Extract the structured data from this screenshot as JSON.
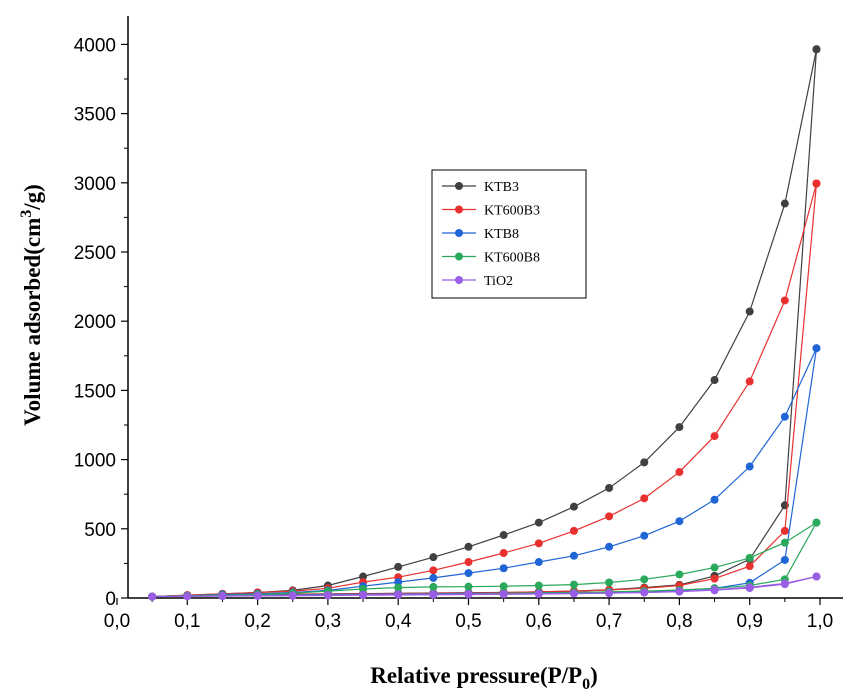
{
  "chart_data": {
    "type": "line",
    "xlabel": "Relative pressure(P/P",
    "xlabel_sub": "0",
    "xlabel_end": ")",
    "ylabel": "Volume adsorbed(cm",
    "ylabel_sup": "3",
    "ylabel_end": "/g)",
    "xlim": [
      0.0,
      1.0
    ],
    "ylim": [
      0,
      4200
    ],
    "x_ticks": [
      0.0,
      0.1,
      0.2,
      0.3,
      0.4,
      0.5,
      0.6,
      0.7,
      0.8,
      0.9,
      1.0
    ],
    "x_tick_labels": [
      "0,0",
      "0,1",
      "0,2",
      "0,3",
      "0,4",
      "0,5",
      "0,6",
      "0,7",
      "0,8",
      "0,9",
      "1,0"
    ],
    "y_ticks": [
      0,
      500,
      1000,
      1500,
      2000,
      2500,
      3000,
      3500,
      4000
    ],
    "y_tick_labels": [
      "0",
      "500",
      "1000",
      "1500",
      "2000",
      "2500",
      "3000",
      "3500",
      "4000"
    ],
    "grid": false,
    "legend_position": "center",
    "series": [
      {
        "name": "KTB3",
        "color": "#404040",
        "adsorption": {
          "x": [
            0.05,
            0.1,
            0.15,
            0.2,
            0.25,
            0.3,
            0.35,
            0.4,
            0.45,
            0.5,
            0.55,
            0.6,
            0.65,
            0.7,
            0.75,
            0.8,
            0.85,
            0.9,
            0.95,
            0.995
          ],
          "y": [
            10,
            20,
            30,
            40,
            55,
            90,
            155,
            225,
            295,
            370,
            455,
            545,
            660,
            795,
            980,
            1235,
            1575,
            2070,
            2850,
            3965
          ]
        },
        "desorption": {
          "x": [
            0.995,
            0.95,
            0.9,
            0.85,
            0.8,
            0.75,
            0.7,
            0.65,
            0.6,
            0.55,
            0.5,
            0.45,
            0.4,
            0.35,
            0.3,
            0.25,
            0.2,
            0.15,
            0.1,
            0.05
          ],
          "y": [
            3965,
            670,
            280,
            160,
            95,
            75,
            60,
            50,
            45,
            40,
            38,
            36,
            34,
            32,
            30,
            28,
            26,
            24,
            20,
            10
          ]
        }
      },
      {
        "name": "KT600B3",
        "color": "#e8312f",
        "adsorption": {
          "x": [
            0.05,
            0.1,
            0.15,
            0.2,
            0.25,
            0.3,
            0.35,
            0.4,
            0.45,
            0.5,
            0.55,
            0.6,
            0.65,
            0.7,
            0.75,
            0.8,
            0.85,
            0.9,
            0.95,
            0.995
          ],
          "y": [
            10,
            20,
            30,
            40,
            50,
            70,
            115,
            150,
            200,
            260,
            325,
            395,
            485,
            590,
            720,
            910,
            1170,
            1565,
            2150,
            2995
          ]
        },
        "desorption": {
          "x": [
            0.995,
            0.95,
            0.9,
            0.85,
            0.8,
            0.75,
            0.7,
            0.65,
            0.6,
            0.55,
            0.5,
            0.45,
            0.4,
            0.35,
            0.3,
            0.25,
            0.2,
            0.15,
            0.1,
            0.05
          ],
          "y": [
            2995,
            485,
            230,
            140,
            90,
            70,
            58,
            50,
            44,
            40,
            37,
            35,
            33,
            31,
            29,
            27,
            25,
            22,
            18,
            10
          ]
        }
      },
      {
        "name": "KTB8",
        "color": "#1f65d6",
        "adsorption": {
          "x": [
            0.05,
            0.1,
            0.15,
            0.2,
            0.25,
            0.3,
            0.35,
            0.4,
            0.45,
            0.5,
            0.55,
            0.6,
            0.65,
            0.7,
            0.75,
            0.8,
            0.85,
            0.9,
            0.95,
            0.995
          ],
          "y": [
            10,
            15,
            25,
            30,
            40,
            55,
            85,
            115,
            145,
            180,
            215,
            260,
            305,
            370,
            450,
            555,
            710,
            950,
            1310,
            1805
          ]
        },
        "desorption": {
          "x": [
            0.995,
            0.95,
            0.9,
            0.85,
            0.8,
            0.75,
            0.7,
            0.65,
            0.6,
            0.55,
            0.5,
            0.45,
            0.4,
            0.35,
            0.3,
            0.25,
            0.2,
            0.15,
            0.1,
            0.05
          ],
          "y": [
            1805,
            275,
            110,
            70,
            55,
            48,
            43,
            40,
            37,
            35,
            33,
            31,
            29,
            27,
            25,
            23,
            21,
            18,
            15,
            10
          ]
        }
      },
      {
        "name": "KT600B8",
        "color": "#2aa85c",
        "adsorption": {
          "x": [
            0.05,
            0.1,
            0.15,
            0.2,
            0.25,
            0.3,
            0.35,
            0.4,
            0.45,
            0.5,
            0.55,
            0.6,
            0.65,
            0.7,
            0.75,
            0.8,
            0.85,
            0.9,
            0.95,
            0.995
          ],
          "y": [
            10,
            15,
            20,
            25,
            35,
            50,
            65,
            75,
            80,
            82,
            85,
            90,
            97,
            112,
            135,
            170,
            220,
            290,
            400,
            545
          ]
        },
        "desorption": {
          "x": [
            0.995,
            0.95,
            0.9,
            0.85,
            0.8,
            0.75,
            0.7,
            0.65,
            0.6,
            0.55,
            0.5,
            0.45,
            0.4,
            0.35,
            0.3,
            0.25,
            0.2,
            0.15,
            0.1,
            0.05
          ],
          "y": [
            545,
            135,
            90,
            70,
            58,
            50,
            45,
            40,
            36,
            33,
            30,
            28,
            26,
            24,
            22,
            20,
            18,
            15,
            12,
            10
          ]
        }
      },
      {
        "name": "TiO2",
        "color": "#9a5ee6",
        "adsorption": {
          "x": [
            0.05,
            0.1,
            0.15,
            0.2,
            0.25,
            0.3,
            0.35,
            0.4,
            0.45,
            0.5,
            0.55,
            0.6,
            0.65,
            0.7,
            0.75,
            0.8,
            0.85,
            0.9,
            0.95,
            0.995
          ],
          "y": [
            10,
            12,
            15,
            17,
            19,
            21,
            23,
            25,
            27,
            28,
            29,
            31,
            33,
            36,
            40,
            48,
            60,
            78,
            105,
            155
          ]
        },
        "desorption": {
          "x": [
            0.995,
            0.95,
            0.9,
            0.85,
            0.8,
            0.75,
            0.7,
            0.65,
            0.6,
            0.55,
            0.5,
            0.45,
            0.4,
            0.35,
            0.3,
            0.25,
            0.2,
            0.15,
            0.1,
            0.05
          ],
          "y": [
            155,
            100,
            72,
            56,
            46,
            40,
            35,
            32,
            29,
            27,
            25,
            23,
            22,
            20,
            18,
            16,
            15,
            13,
            12,
            10
          ]
        }
      }
    ]
  }
}
